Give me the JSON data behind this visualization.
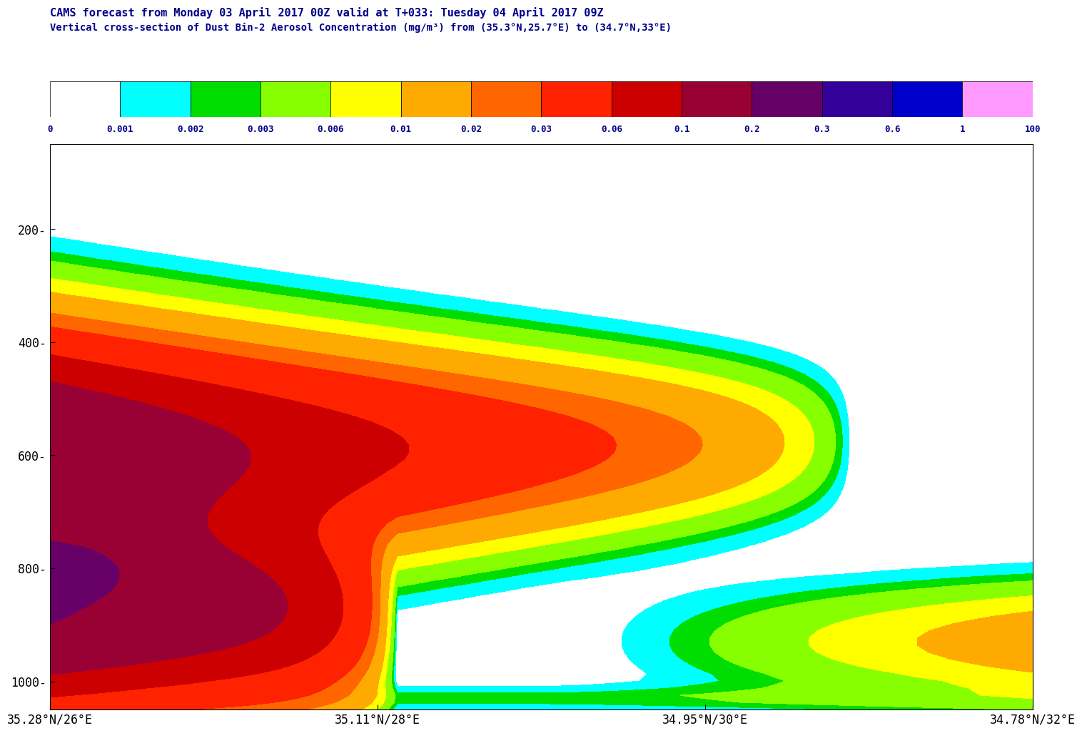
{
  "title1": "CAMS forecast from Monday 03 April 2017 00Z valid at T+033: Tuesday 04 April 2017 09Z",
  "title2": "Vertical cross-section of Dust Bin-2 Aerosol Concentration (mg/m³) from (35.3°N,25.7°E) to (34.7°N,33°E)",
  "title_color": "#00008B",
  "colorbar_levels": [
    0,
    0.001,
    0.002,
    0.003,
    0.006,
    0.01,
    0.02,
    0.03,
    0.06,
    0.1,
    0.2,
    0.3,
    0.6,
    1,
    100
  ],
  "colorbar_colors": [
    "#FFFFFF",
    "#00FFFF",
    "#00DD00",
    "#88FF00",
    "#FFFF00",
    "#FFAA00",
    "#FF6600",
    "#FF2200",
    "#CC0000",
    "#990033",
    "#660066",
    "#330099",
    "#0000CC",
    "#FF99FF"
  ],
  "ylim_min": 50,
  "ylim_max": 1050,
  "yticks": [
    200,
    400,
    600,
    800,
    1000
  ],
  "xtick_labels": [
    "35.28°N/26°E",
    "35.11°N/28°E",
    "34.95°N/30°E",
    "34.78°N/32°E"
  ],
  "nx": 100,
  "ny": 80,
  "background_color": "#FFFFFF",
  "fig_width": 15.13,
  "fig_height": 11.01
}
